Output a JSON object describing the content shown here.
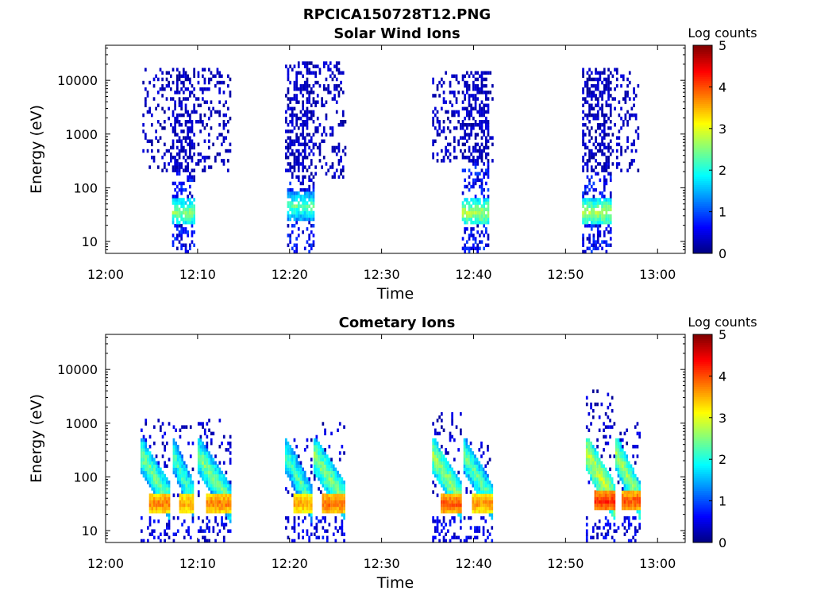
{
  "figure_title": "RPCICA150728T12.PNG",
  "chart_data": [
    {
      "type": "heatmap",
      "title": "Solar Wind Ions",
      "xlabel": "Time",
      "ylabel": "Energy (eV)",
      "x_ticks": [
        "12:00",
        "12:10",
        "12:20",
        "12:30",
        "12:40",
        "12:50",
        "13:00"
      ],
      "x_tick_minutes": [
        0,
        10,
        20,
        30,
        40,
        50,
        60
      ],
      "xlim_minutes": [
        0,
        63
      ],
      "y_scale": "log",
      "y_ticks": [
        "10",
        "100",
        "1000",
        "10000"
      ],
      "y_tick_values": [
        10,
        100,
        1000,
        10000
      ],
      "ylim": [
        6,
        45000
      ],
      "colorbar": {
        "label": "Log counts",
        "ticks": [
          "0",
          "1",
          "2",
          "3",
          "4",
          "5"
        ],
        "range": [
          0,
          5
        ],
        "colormap": "jet"
      },
      "bursts": [
        {
          "start_min": 4.0,
          "end_min": 13.5,
          "core_start_min": 7.2,
          "core_end_min": 9.6,
          "scatter_min_energy": 200,
          "scatter_max_energy": 18000,
          "peak_energy": 35,
          "peak_log_counts": 2.8,
          "min_energy": 6
        },
        {
          "start_min": 19.5,
          "end_min": 26.0,
          "core_start_min": 19.6,
          "core_end_min": 22.6,
          "scatter_min_energy": 150,
          "scatter_max_energy": 24000,
          "peak_energy": 45,
          "peak_log_counts": 2.6,
          "min_energy": 6
        },
        {
          "start_min": 35.5,
          "end_min": 42.0,
          "core_start_min": 38.7,
          "core_end_min": 41.7,
          "scatter_min_energy": 300,
          "scatter_max_energy": 14000,
          "peak_energy": 35,
          "peak_log_counts": 3.0,
          "min_energy": 6
        },
        {
          "start_min": 51.8,
          "end_min": 58.0,
          "core_start_min": 51.8,
          "core_end_min": 54.8,
          "scatter_min_energy": 200,
          "scatter_max_energy": 16000,
          "peak_energy": 35,
          "peak_log_counts": 3.0,
          "min_energy": 6
        }
      ]
    },
    {
      "type": "heatmap",
      "title": "Cometary Ions",
      "xlabel": "Time",
      "ylabel": "Energy (eV)",
      "x_ticks": [
        "12:00",
        "12:10",
        "12:20",
        "12:30",
        "12:40",
        "12:50",
        "13:00"
      ],
      "x_tick_minutes": [
        0,
        10,
        20,
        30,
        40,
        50,
        60
      ],
      "xlim_minutes": [
        0,
        63
      ],
      "y_scale": "log",
      "y_ticks": [
        "10",
        "100",
        "1000",
        "10000"
      ],
      "y_tick_values": [
        10,
        100,
        1000,
        10000
      ],
      "ylim": [
        6,
        45000
      ],
      "colorbar": {
        "label": "Log counts",
        "ticks": [
          "0",
          "1",
          "2",
          "3",
          "4",
          "5"
        ],
        "range": [
          0,
          5
        ],
        "colormap": "jet"
      },
      "arcs": [
        {
          "start_min": 3.8,
          "end_min": 7.0,
          "peak_energy": 32,
          "peak_log_counts": 4.0,
          "top_energy": 1200
        },
        {
          "start_min": 7.3,
          "end_min": 9.6,
          "peak_energy": 32,
          "peak_log_counts": 3.8,
          "top_energy": 900
        },
        {
          "start_min": 10.0,
          "end_min": 13.5,
          "peak_energy": 32,
          "peak_log_counts": 4.0,
          "top_energy": 1300
        },
        {
          "start_min": 19.5,
          "end_min": 22.3,
          "peak_energy": 32,
          "peak_log_counts": 3.8,
          "top_energy": 500
        },
        {
          "start_min": 22.6,
          "end_min": 26.0,
          "peak_energy": 32,
          "peak_log_counts": 4.1,
          "top_energy": 1000
        },
        {
          "start_min": 35.5,
          "end_min": 38.7,
          "peak_energy": 32,
          "peak_log_counts": 4.2,
          "top_energy": 1500
        },
        {
          "start_min": 38.9,
          "end_min": 42.0,
          "peak_energy": 32,
          "peak_log_counts": 3.9,
          "top_energy": 500
        },
        {
          "start_min": 52.2,
          "end_min": 55.2,
          "peak_energy": 35,
          "peak_log_counts": 4.4,
          "top_energy": 4500
        },
        {
          "start_min": 55.4,
          "end_min": 58.0,
          "peak_energy": 35,
          "peak_log_counts": 4.2,
          "top_energy": 1000
        }
      ]
    }
  ]
}
